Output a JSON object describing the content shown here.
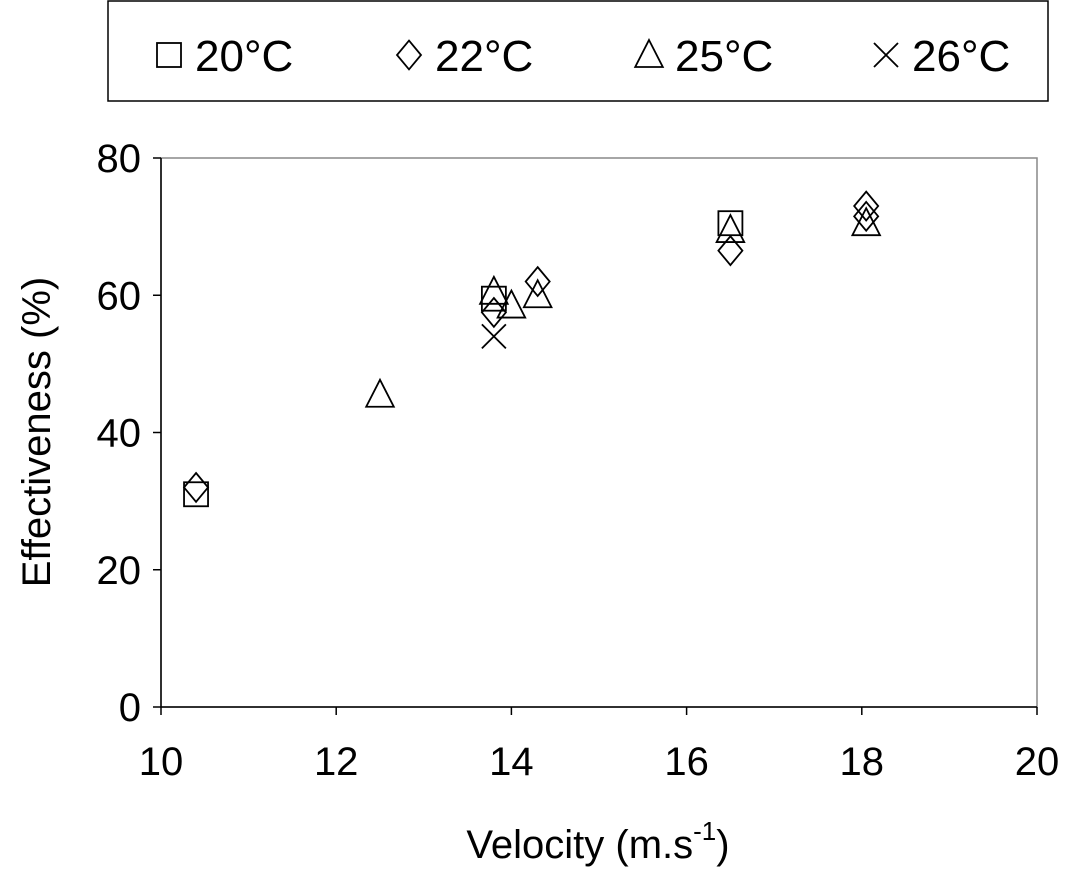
{
  "chart_data": {
    "type": "scatter",
    "x_label": {
      "text": "Velocity (m.s",
      "sup": "-1",
      "tail": ")"
    },
    "y_label": "Effectiveness (%)",
    "xlim": [
      10,
      20
    ],
    "xticks": [
      10,
      12,
      14,
      16,
      18,
      20
    ],
    "ylim": [
      0,
      80
    ],
    "yticks": [
      0,
      20,
      40,
      60,
      80
    ],
    "legend": "top",
    "series": [
      {
        "name": "20°C",
        "color": "#000000",
        "marker": "square",
        "x": [
          10.4,
          13.8,
          16.5
        ],
        "values": [
          31,
          59.5,
          70.5
        ]
      },
      {
        "name": "22°C",
        "color": "#000000",
        "marker": "diamond",
        "x": [
          10.4,
          13.8,
          14.3,
          16.5,
          18.05,
          18.05
        ],
        "values": [
          32,
          57.5,
          62,
          66.5,
          73,
          71.5
        ]
      },
      {
        "name": "25°C",
        "color": "#000000",
        "marker": "triangle",
        "x": [
          12.5,
          13.8,
          14.0,
          14.3,
          16.5,
          18.05
        ],
        "values": [
          45.5,
          60.5,
          58.5,
          60,
          69.5,
          70.5
        ]
      },
      {
        "name": "26°C",
        "color": "#000000",
        "marker": "cross",
        "x": [
          13.8
        ],
        "values": [
          54
        ]
      }
    ]
  }
}
